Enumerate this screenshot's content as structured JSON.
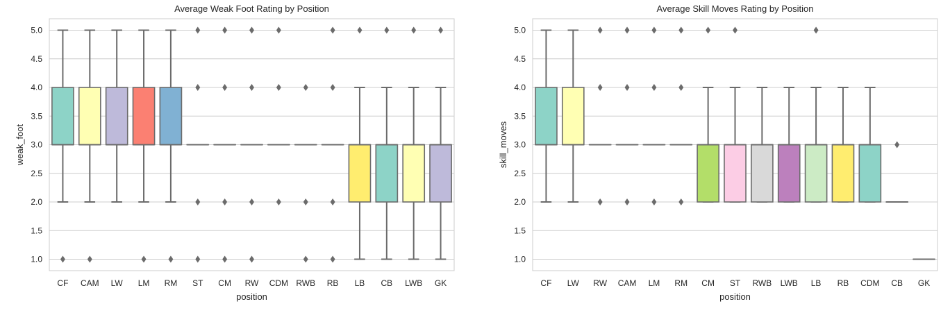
{
  "chart_data": [
    {
      "type": "box",
      "title": "Average Weak Foot Rating by Position",
      "xlabel": "position",
      "ylabel": "weak_foot",
      "ylim": [
        0.8,
        5.2
      ],
      "yticks": [
        "1.0",
        "1.5",
        "2.0",
        "2.5",
        "3.0",
        "3.5",
        "4.0",
        "4.5",
        "5.0"
      ],
      "boxes": [
        {
          "category": "CF",
          "q1": 3,
          "median": 3,
          "q3": 4,
          "whisker_low": 2,
          "whisker_high": 5,
          "outliers": [
            1
          ],
          "color": "#8dd3c7"
        },
        {
          "category": "CAM",
          "q1": 3,
          "median": 3,
          "q3": 4,
          "whisker_low": 2,
          "whisker_high": 5,
          "outliers": [
            1
          ],
          "color": "#ffffb3"
        },
        {
          "category": "LW",
          "q1": 3,
          "median": 3,
          "q3": 4,
          "whisker_low": 2,
          "whisker_high": 5,
          "outliers": [],
          "color": "#bebada"
        },
        {
          "category": "LM",
          "q1": 3,
          "median": 3,
          "q3": 4,
          "whisker_low": 2,
          "whisker_high": 5,
          "outliers": [
            1
          ],
          "color": "#fb8072"
        },
        {
          "category": "RM",
          "q1": 3,
          "median": 3,
          "q3": 4,
          "whisker_low": 2,
          "whisker_high": 5,
          "outliers": [
            1
          ],
          "color": "#80b1d3"
        },
        {
          "category": "ST",
          "q1": 3,
          "median": 3,
          "q3": 3,
          "whisker_low": 3,
          "whisker_high": 3,
          "outliers": [
            1,
            2,
            4,
            5
          ],
          "color": "#fdb462"
        },
        {
          "category": "CM",
          "q1": 3,
          "median": 3,
          "q3": 3,
          "whisker_low": 3,
          "whisker_high": 3,
          "outliers": [
            1,
            2,
            4,
            5
          ],
          "color": "#b3de69"
        },
        {
          "category": "RW",
          "q1": 3,
          "median": 3,
          "q3": 3,
          "whisker_low": 3,
          "whisker_high": 3,
          "outliers": [
            1,
            2,
            4,
            5
          ],
          "color": "#fccde5"
        },
        {
          "category": "CDM",
          "q1": 3,
          "median": 3,
          "q3": 3,
          "whisker_low": 3,
          "whisker_high": 3,
          "outliers": [
            2,
            4,
            5
          ],
          "color": "#d9d9d9"
        },
        {
          "category": "RWB",
          "q1": 3,
          "median": 3,
          "q3": 3,
          "whisker_low": 3,
          "whisker_high": 3,
          "outliers": [
            1,
            2,
            4
          ],
          "color": "#bc80bd"
        },
        {
          "category": "RB",
          "q1": 3,
          "median": 3,
          "q3": 3,
          "whisker_low": 3,
          "whisker_high": 3,
          "outliers": [
            1,
            2,
            4,
            5
          ],
          "color": "#ccebc5"
        },
        {
          "category": "LB",
          "q1": 2,
          "median": 3,
          "q3": 3,
          "whisker_low": 1,
          "whisker_high": 4,
          "outliers": [
            5
          ],
          "color": "#ffed6f"
        },
        {
          "category": "CB",
          "q1": 2,
          "median": 3,
          "q3": 3,
          "whisker_low": 1,
          "whisker_high": 4,
          "outliers": [
            5
          ],
          "color": "#8dd3c7"
        },
        {
          "category": "LWB",
          "q1": 2,
          "median": 3,
          "q3": 3,
          "whisker_low": 1,
          "whisker_high": 4,
          "outliers": [
            5
          ],
          "color": "#ffffb3"
        },
        {
          "category": "GK",
          "q1": 2,
          "median": 3,
          "q3": 3,
          "whisker_low": 1,
          "whisker_high": 4,
          "outliers": [
            5
          ],
          "color": "#bebada"
        }
      ]
    },
    {
      "type": "box",
      "title": "Average Skill Moves Rating by Position",
      "xlabel": "position",
      "ylabel": "skill_moves",
      "ylim": [
        0.8,
        5.2
      ],
      "yticks": [
        "1.0",
        "1.5",
        "2.0",
        "2.5",
        "3.0",
        "3.5",
        "4.0",
        "4.5",
        "5.0"
      ],
      "boxes": [
        {
          "category": "CF",
          "q1": 3,
          "median": 3,
          "q3": 4,
          "whisker_low": 2,
          "whisker_high": 5,
          "outliers": [],
          "color": "#8dd3c7"
        },
        {
          "category": "LW",
          "q1": 3,
          "median": 3,
          "q3": 4,
          "whisker_low": 2,
          "whisker_high": 5,
          "outliers": [],
          "color": "#ffffb3"
        },
        {
          "category": "RW",
          "q1": 3,
          "median": 3,
          "q3": 3,
          "whisker_low": 3,
          "whisker_high": 3,
          "outliers": [
            2,
            4,
            5
          ],
          "color": "#bebada"
        },
        {
          "category": "CAM",
          "q1": 3,
          "median": 3,
          "q3": 3,
          "whisker_low": 3,
          "whisker_high": 3,
          "outliers": [
            2,
            4,
            5
          ],
          "color": "#fb8072"
        },
        {
          "category": "LM",
          "q1": 3,
          "median": 3,
          "q3": 3,
          "whisker_low": 3,
          "whisker_high": 3,
          "outliers": [
            2,
            4,
            5
          ],
          "color": "#80b1d3"
        },
        {
          "category": "RM",
          "q1": 3,
          "median": 3,
          "q3": 3,
          "whisker_low": 3,
          "whisker_high": 3,
          "outliers": [
            2,
            4,
            5
          ],
          "color": "#fdb462"
        },
        {
          "category": "CM",
          "q1": 2,
          "median": 3,
          "q3": 3,
          "whisker_low": 2,
          "whisker_high": 4,
          "outliers": [
            5
          ],
          "color": "#b3de69"
        },
        {
          "category": "ST",
          "q1": 2,
          "median": 3,
          "q3": 3,
          "whisker_low": 2,
          "whisker_high": 4,
          "outliers": [
            5
          ],
          "color": "#fccde5"
        },
        {
          "category": "RWB",
          "q1": 2,
          "median": 3,
          "q3": 3,
          "whisker_low": 2,
          "whisker_high": 4,
          "outliers": [],
          "color": "#d9d9d9"
        },
        {
          "category": "LWB",
          "q1": 2,
          "median": 3,
          "q3": 3,
          "whisker_low": 2,
          "whisker_high": 4,
          "outliers": [],
          "color": "#bc80bd"
        },
        {
          "category": "LB",
          "q1": 2,
          "median": 3,
          "q3": 3,
          "whisker_low": 2,
          "whisker_high": 4,
          "outliers": [
            5
          ],
          "color": "#ccebc5"
        },
        {
          "category": "RB",
          "q1": 2,
          "median": 3,
          "q3": 3,
          "whisker_low": 2,
          "whisker_high": 4,
          "outliers": [],
          "color": "#ffed6f"
        },
        {
          "category": "CDM",
          "q1": 2,
          "median": 3,
          "q3": 3,
          "whisker_low": 2,
          "whisker_high": 4,
          "outliers": [],
          "color": "#8dd3c7"
        },
        {
          "category": "CB",
          "q1": 2,
          "median": 2,
          "q3": 2,
          "whisker_low": 2,
          "whisker_high": 2,
          "outliers": [
            3
          ],
          "color": "#ffffb3"
        },
        {
          "category": "GK",
          "q1": 1,
          "median": 1,
          "q3": 1,
          "whisker_low": 1,
          "whisker_high": 1,
          "outliers": [],
          "color": "#bebada"
        }
      ]
    }
  ]
}
